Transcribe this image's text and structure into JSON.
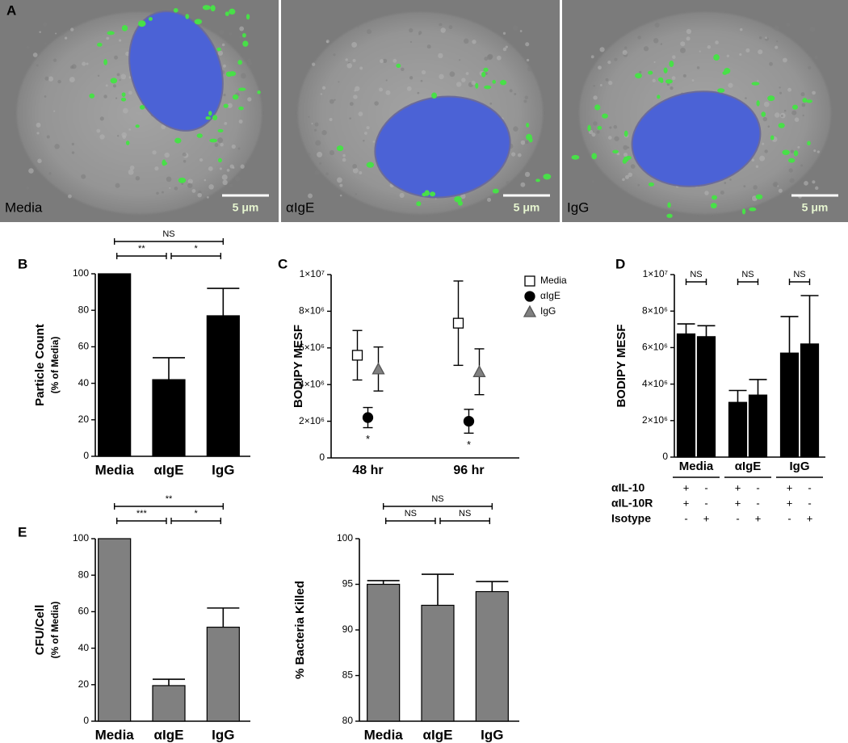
{
  "image_panel": "A",
  "images": [
    {
      "label": "Media",
      "scale_bar": "5 μm"
    },
    {
      "label": "αIgE",
      "scale_bar": "5 μm"
    },
    {
      "label": "IgG",
      "scale_bar": "5 μm"
    }
  ],
  "chart_data": [
    {
      "type": "bar",
      "panel": "B",
      "ylabel": "Particle Count",
      "ylabel_sub": "(% of Media)",
      "categories": [
        "Media",
        "αIgE",
        "IgG"
      ],
      "values": [
        100,
        42,
        77
      ],
      "errors": [
        null,
        12,
        15
      ],
      "color": "#000000",
      "ylim": [
        0,
        100
      ],
      "yticks": [
        0,
        20,
        40,
        60,
        80,
        100
      ],
      "brackets": [
        {
          "text": "NS",
          "from": "Media",
          "to": "IgG"
        },
        {
          "text": "**",
          "from": "Media",
          "to": "αIgE"
        },
        {
          "text": "*",
          "from": "αIgE",
          "to": "IgG"
        }
      ]
    },
    {
      "type": "point",
      "panel": "C",
      "ylabel": "BODIPY MESF",
      "categories": [
        "48 hr",
        "96 hr"
      ],
      "series": [
        {
          "name": "Media",
          "marker": "square",
          "color": "#ffffff",
          "values": [
            5600000,
            7350000
          ],
          "errors": [
            1350000,
            2300000
          ]
        },
        {
          "name": "αIgE",
          "marker": "circle",
          "color": "#000000",
          "values": [
            2200000,
            2000000
          ],
          "errors": [
            550000,
            650000
          ]
        },
        {
          "name": "IgG",
          "marker": "triangle",
          "color": "#808080",
          "values": [
            4850000,
            4700000
          ],
          "errors": [
            1200000,
            1250000
          ]
        }
      ],
      "ylim": [
        0,
        10000000
      ],
      "yticks": [
        0,
        {
          "value": 2000000,
          "label": "2×10⁶"
        },
        {
          "value": 4000000,
          "label": "4×10⁶"
        },
        {
          "value": 6000000,
          "label": "6×10⁶"
        },
        {
          "value": 8000000,
          "label": "8×10⁶"
        },
        {
          "value": 10000000,
          "label": "1×10⁷"
        }
      ],
      "annotations": [
        {
          "text": "*",
          "series": "αIgE",
          "category": "48 hr"
        },
        {
          "text": "*",
          "series": "αIgE",
          "category": "96 hr"
        }
      ],
      "legend": "upper right"
    },
    {
      "type": "bar",
      "panel": "D",
      "ylabel": "BODIPY MESF",
      "groups": [
        "Media",
        "αIgE",
        "IgG"
      ],
      "values": [
        6750000,
        6600000,
        3000000,
        3400000,
        5700000,
        6200000
      ],
      "errors": [
        550000,
        600000,
        650000,
        850000,
        2000000,
        2650000
      ],
      "color": "#000000",
      "ylim": [
        0,
        10000000
      ],
      "yticks": [
        0,
        {
          "value": 2000000,
          "label": "2×10⁶"
        },
        {
          "value": 4000000,
          "label": "4×10⁶"
        },
        {
          "value": 6000000,
          "label": "6×10⁶"
        },
        {
          "value": 8000000,
          "label": "8×10⁶"
        },
        {
          "value": 10000000,
          "label": "1×10⁷"
        }
      ],
      "brackets": [
        {
          "text": "NS",
          "group": "Media"
        },
        {
          "text": "NS",
          "group": "αIgE"
        },
        {
          "text": "NS",
          "group": "IgG"
        }
      ],
      "conditions": [
        {
          "label": "αIL-10",
          "signs": [
            "+",
            "-",
            "+",
            "-",
            "+",
            "-"
          ]
        },
        {
          "label": "αIL-10R",
          "signs": [
            "+",
            "-",
            "+",
            "-",
            "+",
            "-"
          ]
        },
        {
          "label": "Isotype",
          "signs": [
            "-",
            "+",
            "-",
            "+",
            "-",
            "+"
          ]
        }
      ]
    },
    {
      "type": "bar",
      "panel": "E",
      "ylabel": "CFU/Cell",
      "ylabel_sub": "(% of Media)",
      "categories": [
        "Media",
        "αIgE",
        "IgG"
      ],
      "values": [
        100,
        19.5,
        51.5
      ],
      "errors": [
        null,
        3.5,
        10.5
      ],
      "color": "#808080",
      "ylim": [
        0,
        100
      ],
      "yticks": [
        0,
        20,
        40,
        60,
        80,
        100
      ],
      "brackets": [
        {
          "text": "**",
          "from": "Media",
          "to": "IgG"
        },
        {
          "text": "***",
          "from": "Media",
          "to": "αIgE"
        },
        {
          "text": "*",
          "from": "αIgE",
          "to": "IgG"
        }
      ]
    },
    {
      "type": "bar",
      "ylabel": "% Bacteria Killed",
      "categories": [
        "Media",
        "αIgE",
        "IgG"
      ],
      "values": [
        95,
        92.7,
        94.2
      ],
      "errors": [
        0.4,
        3.4,
        1.1
      ],
      "color": "#808080",
      "ylim": [
        80,
        100
      ],
      "yticks": [
        80,
        85,
        90,
        95,
        100
      ],
      "brackets": [
        {
          "text": "NS",
          "from": "Media",
          "to": "IgG"
        },
        {
          "text": "NS",
          "from": "Media",
          "to": "αIgE"
        },
        {
          "text": "NS",
          "from": "αIgE",
          "to": "IgG"
        }
      ]
    }
  ]
}
